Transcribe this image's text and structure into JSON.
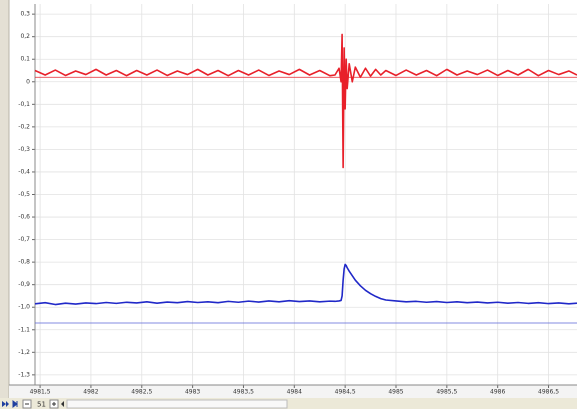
{
  "chart_data": {
    "type": "line",
    "x": [
      4981.45,
      4981.55,
      4981.65,
      4981.75,
      4981.85,
      4981.95,
      4982.05,
      4982.15,
      4982.25,
      4982.35,
      4982.45,
      4982.55,
      4982.65,
      4982.75,
      4982.85,
      4982.95,
      4983.05,
      4983.15,
      4983.25,
      4983.35,
      4983.45,
      4983.55,
      4983.65,
      4983.75,
      4983.85,
      4983.95,
      4984.05,
      4984.15,
      4984.25,
      4984.35,
      4984.4,
      4984.44,
      4984.46,
      4984.47,
      4984.48,
      4984.49,
      4984.5,
      4984.51,
      4984.52,
      4984.54,
      4984.57,
      4984.6,
      4984.65,
      4984.7,
      4984.75,
      4984.8,
      4984.85,
      4984.9,
      4985.0,
      4985.1,
      4985.2,
      4985.3,
      4985.4,
      4985.5,
      4985.6,
      4985.7,
      4985.8,
      4985.9,
      4986.0,
      4986.1,
      4986.2,
      4986.3,
      4986.4,
      4986.5,
      4986.6,
      4986.7,
      4986.78
    ],
    "series": [
      {
        "color": "#e8202a",
        "values": [
          0.05,
          0.03,
          0.052,
          0.028,
          0.048,
          0.032,
          0.055,
          0.03,
          0.05,
          0.027,
          0.05,
          0.03,
          0.052,
          0.028,
          0.048,
          0.032,
          0.055,
          0.03,
          0.05,
          0.027,
          0.05,
          0.03,
          0.052,
          0.028,
          0.048,
          0.032,
          0.055,
          0.03,
          0.05,
          0.027,
          0.03,
          0.06,
          0.0,
          0.21,
          -0.38,
          0.15,
          -0.12,
          0.1,
          -0.03,
          0.08,
          0.0,
          0.065,
          0.02,
          0.06,
          0.025,
          0.055,
          0.03,
          0.05,
          0.028,
          0.052,
          0.03,
          0.05,
          0.027,
          0.055,
          0.03,
          0.048,
          0.032,
          0.052,
          0.028,
          0.05,
          0.03,
          0.055,
          0.027,
          0.05,
          0.032,
          0.048,
          0.03
        ]
      },
      {
        "color": "#2028c8",
        "values": [
          -0.985,
          -0.98,
          -0.988,
          -0.982,
          -0.986,
          -0.981,
          -0.984,
          -0.979,
          -0.983,
          -0.978,
          -0.981,
          -0.976,
          -0.982,
          -0.977,
          -0.98,
          -0.975,
          -0.979,
          -0.976,
          -0.98,
          -0.974,
          -0.978,
          -0.973,
          -0.977,
          -0.972,
          -0.976,
          -0.971,
          -0.975,
          -0.972,
          -0.976,
          -0.973,
          -0.974,
          -0.972,
          -0.97,
          -0.95,
          -0.88,
          -0.83,
          -0.81,
          -0.815,
          -0.825,
          -0.84,
          -0.86,
          -0.88,
          -0.905,
          -0.925,
          -0.94,
          -0.952,
          -0.962,
          -0.968,
          -0.972,
          -0.976,
          -0.974,
          -0.978,
          -0.975,
          -0.979,
          -0.976,
          -0.98,
          -0.977,
          -0.981,
          -0.978,
          -0.982,
          -0.979,
          -0.983,
          -0.98,
          -0.984,
          -0.981,
          -0.985,
          -0.982
        ]
      }
    ],
    "reference_lines": [
      {
        "value": 0.02,
        "color": "#e8202a"
      },
      {
        "value": -1.07,
        "color": "#5a64d8"
      }
    ],
    "xlim": [
      4981.45,
      4986.78
    ],
    "ylim": [
      -1.345,
      0.345
    ],
    "xticks": [
      {
        "value": 4981.5,
        "label": "4981,5"
      },
      4982,
      {
        "value": 4982.5,
        "label": "4982,5"
      },
      4983,
      {
        "value": 4983.5,
        "label": "4983,5"
      },
      4984,
      {
        "value": 4984.5,
        "label": "4984,5"
      },
      4985,
      {
        "value": 4985.5,
        "label": "4985,5"
      },
      4986,
      {
        "value": 4986.5,
        "label": "4986,5"
      }
    ],
    "yticks": [
      {
        "value": 0.3,
        "label": "0,3"
      },
      {
        "value": 0.2,
        "label": "0,2"
      },
      {
        "value": 0.1,
        "label": "0,1"
      },
      0,
      {
        "value": -0.1,
        "label": "-0,1"
      },
      {
        "value": -0.2,
        "label": "-0,2"
      },
      {
        "value": -0.3,
        "label": "-0,3"
      },
      {
        "value": -0.4,
        "label": "-0,4"
      },
      {
        "value": -0.5,
        "label": "-0,5"
      },
      {
        "value": -0.6,
        "label": "-0,6"
      },
      {
        "value": -0.7,
        "label": "-0,7"
      },
      {
        "value": -0.8,
        "label": "-0,8"
      },
      {
        "value": -0.9,
        "label": "-0,9"
      },
      {
        "value": -1,
        "label": "-1,0"
      },
      {
        "value": -1.1,
        "label": "-1,1"
      },
      {
        "value": -1.2,
        "label": "-1,2"
      },
      {
        "value": -1.3,
        "label": "-1,3"
      }
    ],
    "grid": true
  },
  "toolbar": {
    "zoom_label": "51"
  }
}
